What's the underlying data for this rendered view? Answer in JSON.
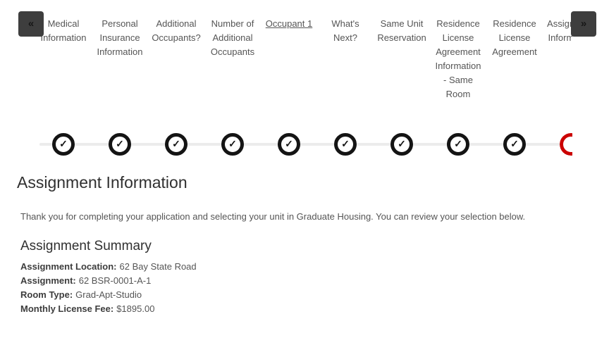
{
  "stepper": {
    "prev_label": "«",
    "next_label": "»",
    "check_glyph": "✓",
    "steps": [
      {
        "label": "Medical Information",
        "state": "complete",
        "underlined": false
      },
      {
        "label": "Personal Insurance Information",
        "state": "complete",
        "underlined": false
      },
      {
        "label": "Additional Occupants?",
        "state": "complete",
        "underlined": false
      },
      {
        "label": "Number of Additional Occupants",
        "state": "complete",
        "underlined": false
      },
      {
        "label": "Occupant 1",
        "state": "complete",
        "underlined": true
      },
      {
        "label": "What's Next?",
        "state": "complete",
        "underlined": false
      },
      {
        "label": "Same Unit Reservation",
        "state": "complete",
        "underlined": false
      },
      {
        "label": "Residence License Agreement Information - Same Room",
        "state": "complete",
        "underlined": false
      },
      {
        "label": "Residence License Agreement",
        "state": "complete",
        "underlined": false
      },
      {
        "label": "Assignment Information",
        "state": "current",
        "underlined": false
      }
    ]
  },
  "page": {
    "title": "Assignment Information",
    "intro": "Thank you for completing your application and selecting your unit in Graduate Housing. You can review your selection below.",
    "summary": {
      "heading": "Assignment Summary",
      "rows": [
        {
          "label": "Assignment Location:",
          "value": "62 Bay State Road"
        },
        {
          "label": "Assignment:",
          "value": "62 BSR-0001-A-1"
        },
        {
          "label": "Room Type:",
          "value": "Grad-Apt-Studio"
        },
        {
          "label": "Monthly License Fee:",
          "value": "$1895.00"
        }
      ]
    }
  },
  "colors": {
    "accent_red": "#cb0000",
    "circle_black": "#141414",
    "nav_button_bg": "#3e3e3e",
    "line_gray": "#ececec"
  }
}
